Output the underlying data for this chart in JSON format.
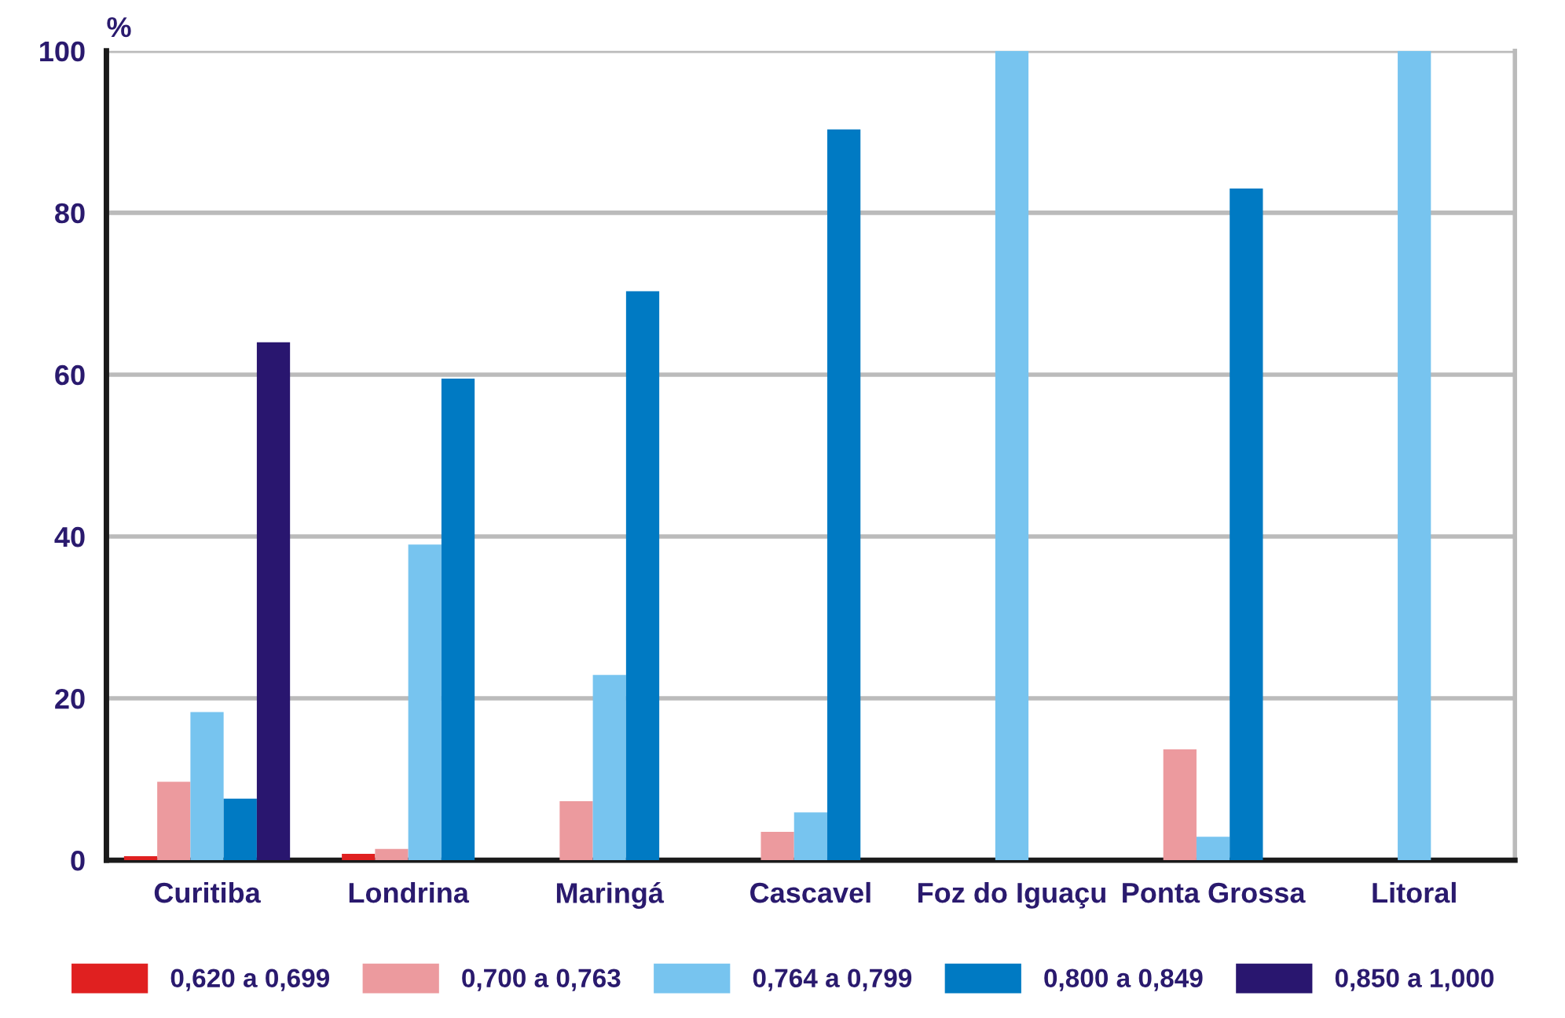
{
  "chart_data": {
    "type": "bar",
    "ylabel": "%",
    "categories": [
      "Curitiba",
      "Londrina",
      "Maringá",
      "Cascavel",
      "Foz do Iguaçu",
      "Ponta Grossa",
      "Litoral"
    ],
    "series": [
      {
        "name": "0,620 a 0,699",
        "color": "#e02020",
        "values": [
          0.5,
          0.8,
          null,
          null,
          null,
          null,
          null
        ]
      },
      {
        "name": "0,700 a 0,763",
        "color": "#ec9a9e",
        "values": [
          9.7,
          1.4,
          7.3,
          3.5,
          null,
          13.7,
          null
        ]
      },
      {
        "name": "0,764 a 0,799",
        "color": "#77c4ef",
        "values": [
          18.3,
          39,
          22.9,
          5.9,
          100,
          2.9,
          100
        ]
      },
      {
        "name": "0,800 a 0,849",
        "color": "#007ac3",
        "values": [
          7.6,
          59.5,
          70.3,
          90.3,
          null,
          83,
          null
        ]
      },
      {
        "name": "0,850 a 1,000",
        "color": "#29166f",
        "values": [
          64,
          null,
          null,
          null,
          null,
          null,
          null
        ]
      }
    ],
    "ylim": [
      0,
      100
    ],
    "yticks": [
      0,
      20,
      40,
      60,
      80,
      100
    ],
    "grid": "y",
    "legend": "bottom"
  }
}
